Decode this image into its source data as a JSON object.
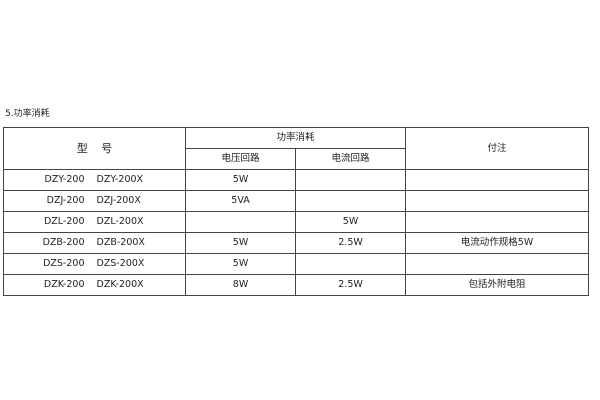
{
  "section_title": "5.功率消耗",
  "table": {
    "headers": {
      "model": "型 号",
      "power": "功率消耗",
      "voltage_circuit": "电压回路",
      "current_circuit": "电流回路",
      "note": "付注"
    },
    "rows": [
      {
        "model_a": "DZY-200",
        "model_b": "DZY-200X",
        "voltage": "5W",
        "current": "",
        "note": ""
      },
      {
        "model_a": "DZJ-200",
        "model_b": "DZJ-200X",
        "voltage": "5VA",
        "current": "",
        "note": ""
      },
      {
        "model_a": "DZL-200",
        "model_b": "DZL-200X",
        "voltage": "",
        "current": "5W",
        "note": ""
      },
      {
        "model_a": "DZB-200",
        "model_b": "DZB-200X",
        "voltage": "5W",
        "current": "2.5W",
        "note": "电流动作规格5W"
      },
      {
        "model_a": "DZS-200",
        "model_b": "DZS-200X",
        "voltage": "5W",
        "current": "",
        "note": ""
      },
      {
        "model_a": "DZK-200",
        "model_b": "DZK-200X",
        "voltage": "8W",
        "current": "2.5W",
        "note": "包括外附电阻"
      }
    ]
  }
}
